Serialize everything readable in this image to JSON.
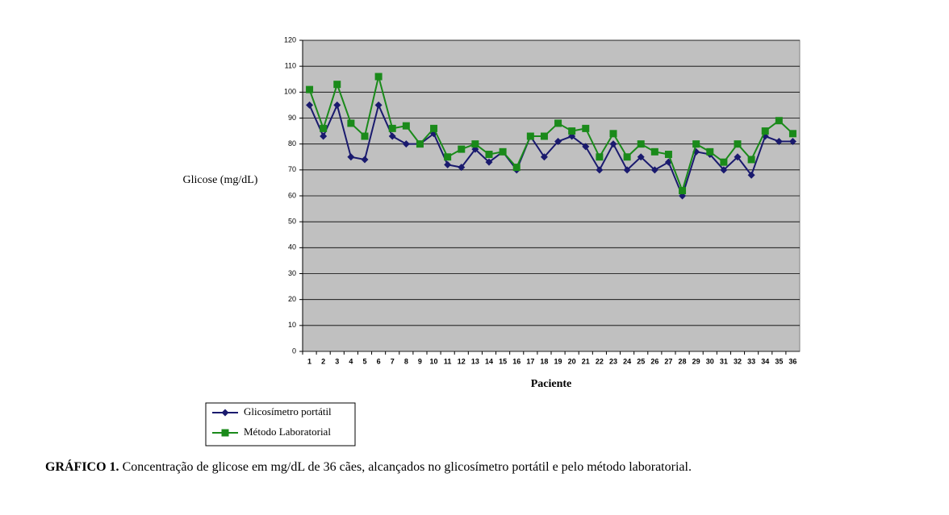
{
  "chart_data": {
    "type": "line",
    "y_label": "Glicose (mg/dL)",
    "x_label": "Paciente",
    "caption_label": "GRÁFICO 1.",
    "caption_text": "Concentração de glicose em mg/dL de 36 cães, alcançados no glicosímetro portátil e pelo método laboratorial.",
    "categories": [
      "1",
      "2",
      "3",
      "4",
      "5",
      "6",
      "7",
      "8",
      "9",
      "10",
      "11",
      "12",
      "13",
      "14",
      "15",
      "16",
      "17",
      "18",
      "19",
      "20",
      "21",
      "22",
      "23",
      "24",
      "25",
      "26",
      "27",
      "28",
      "29",
      "30",
      "31",
      "32",
      "33",
      "34",
      "35",
      "36"
    ],
    "series": [
      {
        "name": "Glicosímetro portátil",
        "color": "#1a1a6e",
        "marker": "diamond",
        "values": [
          95,
          83,
          95,
          75,
          74,
          95,
          83,
          80,
          80,
          84,
          72,
          71,
          78,
          73,
          77,
          70,
          83,
          75,
          81,
          83,
          79,
          70,
          80,
          70,
          75,
          70,
          73,
          60,
          77,
          76,
          70,
          75,
          68,
          83,
          81,
          81
        ]
      },
      {
        "name": "Método Laboratorial",
        "color": "#1a8a1a",
        "marker": "square",
        "values": [
          101,
          86,
          103,
          88,
          83,
          106,
          86,
          87,
          80,
          86,
          75,
          78,
          80,
          76,
          77,
          71,
          83,
          83,
          88,
          85,
          86,
          75,
          84,
          75,
          80,
          77,
          76,
          62,
          80,
          77,
          73,
          80,
          74,
          85,
          89,
          84
        ]
      }
    ],
    "ylim": [
      0,
      120
    ],
    "yticks": [
      0,
      10,
      20,
      30,
      40,
      50,
      60,
      70,
      80,
      90,
      100,
      110,
      120
    ],
    "grid": true,
    "plot_background": "#c0c0c0"
  }
}
